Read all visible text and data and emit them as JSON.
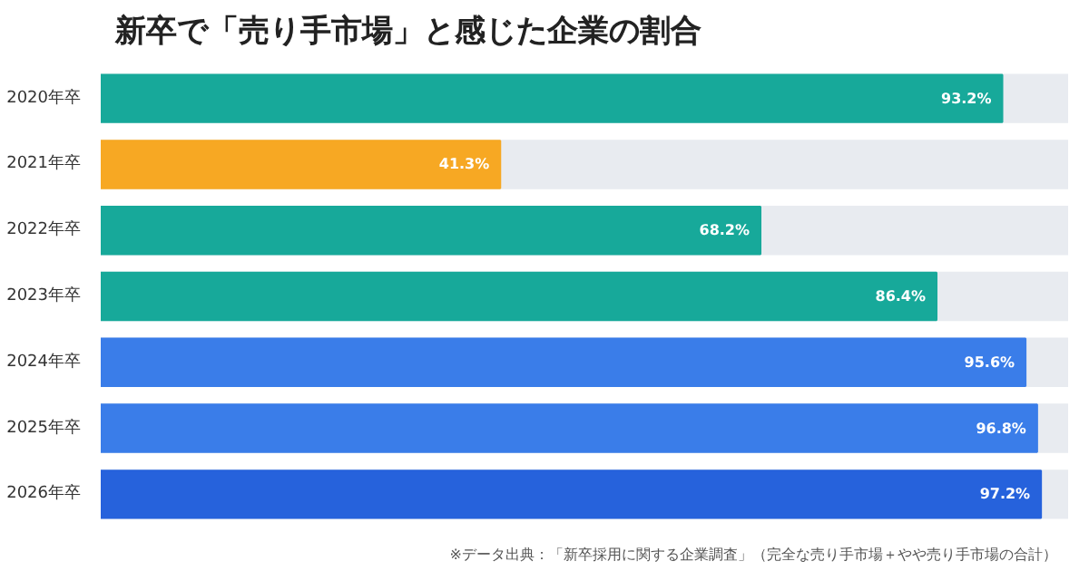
{
  "chart_data": {
    "type": "bar",
    "orientation": "horizontal",
    "title": "新卒で「売り手市場」と感じた企業の割合",
    "categories": [
      "2020年卒",
      "2021年卒",
      "2022年卒",
      "2023年卒",
      "2024年卒",
      "2025年卒",
      "2026年卒"
    ],
    "values": [
      93.2,
      41.3,
      68.2,
      86.4,
      95.6,
      96.8,
      97.2
    ],
    "value_labels": [
      "93.2%",
      "41.3%",
      "68.2%",
      "86.4%",
      "95.6%",
      "96.8%",
      "97.2%"
    ],
    "colors": [
      "#17a99a",
      "#f7a823",
      "#17a99a",
      "#17a99a",
      "#3a7de9",
      "#3a7de9",
      "#2662dc"
    ],
    "xlim": [
      0,
      100
    ],
    "tick_labels": "y",
    "grid": false,
    "annotations": [
      "※データ出典：「新卒採用に関する企業調査」（完全な売り手市場＋やや売り手市場の合計）"
    ]
  }
}
